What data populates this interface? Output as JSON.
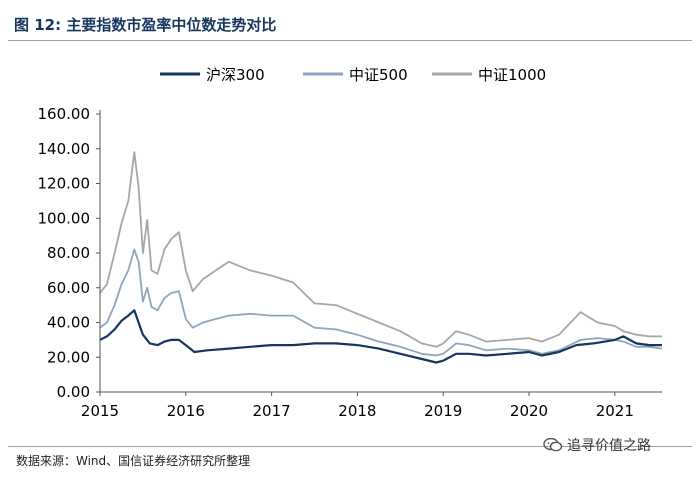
{
  "header": {
    "title": "图 12:  主要指数市盈率中位数走势对比"
  },
  "footer": {
    "source": "数据来源：Wind、国信证券经济研究所整理",
    "watermark": "追寻价值之路",
    "watermark_icon": "wechat-icon"
  },
  "chart_data": {
    "type": "line",
    "y_ticks": [
      "160.00",
      "140.00",
      "120.00",
      "100.00",
      "80.00",
      "60.00",
      "40.00",
      "20.00",
      "0.00"
    ],
    "x_ticks": [
      "2015",
      "2016",
      "2017",
      "2018",
      "2019",
      "2020",
      "2021"
    ],
    "ylim": [
      0,
      160
    ],
    "xlim": [
      2015.0,
      2021.55
    ],
    "grid": false,
    "legend_position": "top",
    "series": [
      {
        "name": "沪深300",
        "color": "#17365d",
        "points": [
          [
            2015.0,
            30
          ],
          [
            2015.08,
            32
          ],
          [
            2015.17,
            36
          ],
          [
            2015.25,
            41
          ],
          [
            2015.33,
            44
          ],
          [
            2015.4,
            47
          ],
          [
            2015.45,
            40
          ],
          [
            2015.5,
            33
          ],
          [
            2015.58,
            28
          ],
          [
            2015.67,
            27
          ],
          [
            2015.75,
            29
          ],
          [
            2015.83,
            30
          ],
          [
            2015.92,
            30
          ],
          [
            2016.0,
            27
          ],
          [
            2016.1,
            23
          ],
          [
            2016.25,
            24
          ],
          [
            2016.5,
            25
          ],
          [
            2016.75,
            26
          ],
          [
            2017.0,
            27
          ],
          [
            2017.25,
            27
          ],
          [
            2017.5,
            28
          ],
          [
            2017.75,
            28
          ],
          [
            2018.0,
            27
          ],
          [
            2018.25,
            25
          ],
          [
            2018.5,
            22
          ],
          [
            2018.75,
            19
          ],
          [
            2018.92,
            17
          ],
          [
            2019.0,
            18
          ],
          [
            2019.15,
            22
          ],
          [
            2019.3,
            22
          ],
          [
            2019.5,
            21
          ],
          [
            2019.75,
            22
          ],
          [
            2020.0,
            23
          ],
          [
            2020.15,
            21
          ],
          [
            2020.35,
            23
          ],
          [
            2020.55,
            27
          ],
          [
            2020.75,
            28
          ],
          [
            2021.0,
            30
          ],
          [
            2021.1,
            32
          ],
          [
            2021.25,
            28
          ],
          [
            2021.4,
            27
          ],
          [
            2021.55,
            27
          ]
        ]
      },
      {
        "name": "中证500",
        "color": "#8fa5bb",
        "points": [
          [
            2015.0,
            37
          ],
          [
            2015.08,
            40
          ],
          [
            2015.17,
            50
          ],
          [
            2015.25,
            62
          ],
          [
            2015.33,
            70
          ],
          [
            2015.4,
            82
          ],
          [
            2015.45,
            75
          ],
          [
            2015.5,
            52
          ],
          [
            2015.55,
            60
          ],
          [
            2015.6,
            49
          ],
          [
            2015.67,
            47
          ],
          [
            2015.75,
            54
          ],
          [
            2015.83,
            57
          ],
          [
            2015.92,
            58
          ],
          [
            2016.0,
            42
          ],
          [
            2016.08,
            37
          ],
          [
            2016.2,
            40
          ],
          [
            2016.35,
            42
          ],
          [
            2016.5,
            44
          ],
          [
            2016.75,
            45
          ],
          [
            2017.0,
            44
          ],
          [
            2017.25,
            44
          ],
          [
            2017.5,
            37
          ],
          [
            2017.75,
            36
          ],
          [
            2018.0,
            33
          ],
          [
            2018.25,
            29
          ],
          [
            2018.5,
            26
          ],
          [
            2018.75,
            22
          ],
          [
            2018.92,
            21
          ],
          [
            2019.0,
            22
          ],
          [
            2019.15,
            28
          ],
          [
            2019.3,
            27
          ],
          [
            2019.5,
            24
          ],
          [
            2019.75,
            25
          ],
          [
            2020.0,
            24
          ],
          [
            2020.15,
            22
          ],
          [
            2020.35,
            24
          ],
          [
            2020.6,
            30
          ],
          [
            2020.8,
            31
          ],
          [
            2021.0,
            30
          ],
          [
            2021.1,
            29
          ],
          [
            2021.25,
            26
          ],
          [
            2021.4,
            26
          ],
          [
            2021.55,
            25
          ]
        ]
      },
      {
        "name": "中证1000",
        "color": "#a6a6a6",
        "points": [
          [
            2015.0,
            57
          ],
          [
            2015.08,
            62
          ],
          [
            2015.17,
            80
          ],
          [
            2015.25,
            97
          ],
          [
            2015.33,
            110
          ],
          [
            2015.4,
            138
          ],
          [
            2015.45,
            118
          ],
          [
            2015.5,
            80
          ],
          [
            2015.55,
            99
          ],
          [
            2015.6,
            70
          ],
          [
            2015.67,
            68
          ],
          [
            2015.75,
            82
          ],
          [
            2015.83,
            88
          ],
          [
            2015.92,
            92
          ],
          [
            2016.0,
            70
          ],
          [
            2016.08,
            58
          ],
          [
            2016.2,
            65
          ],
          [
            2016.35,
            70
          ],
          [
            2016.5,
            75
          ],
          [
            2016.75,
            70
          ],
          [
            2017.0,
            67
          ],
          [
            2017.25,
            63
          ],
          [
            2017.5,
            51
          ],
          [
            2017.75,
            50
          ],
          [
            2018.0,
            45
          ],
          [
            2018.25,
            40
          ],
          [
            2018.5,
            35
          ],
          [
            2018.75,
            28
          ],
          [
            2018.92,
            26
          ],
          [
            2019.0,
            28
          ],
          [
            2019.15,
            35
          ],
          [
            2019.3,
            33
          ],
          [
            2019.5,
            29
          ],
          [
            2019.75,
            30
          ],
          [
            2020.0,
            31
          ],
          [
            2020.15,
            29
          ],
          [
            2020.35,
            33
          ],
          [
            2020.6,
            46
          ],
          [
            2020.8,
            40
          ],
          [
            2021.0,
            38
          ],
          [
            2021.1,
            35
          ],
          [
            2021.25,
            33
          ],
          [
            2021.4,
            32
          ],
          [
            2021.55,
            32
          ]
        ]
      }
    ]
  }
}
